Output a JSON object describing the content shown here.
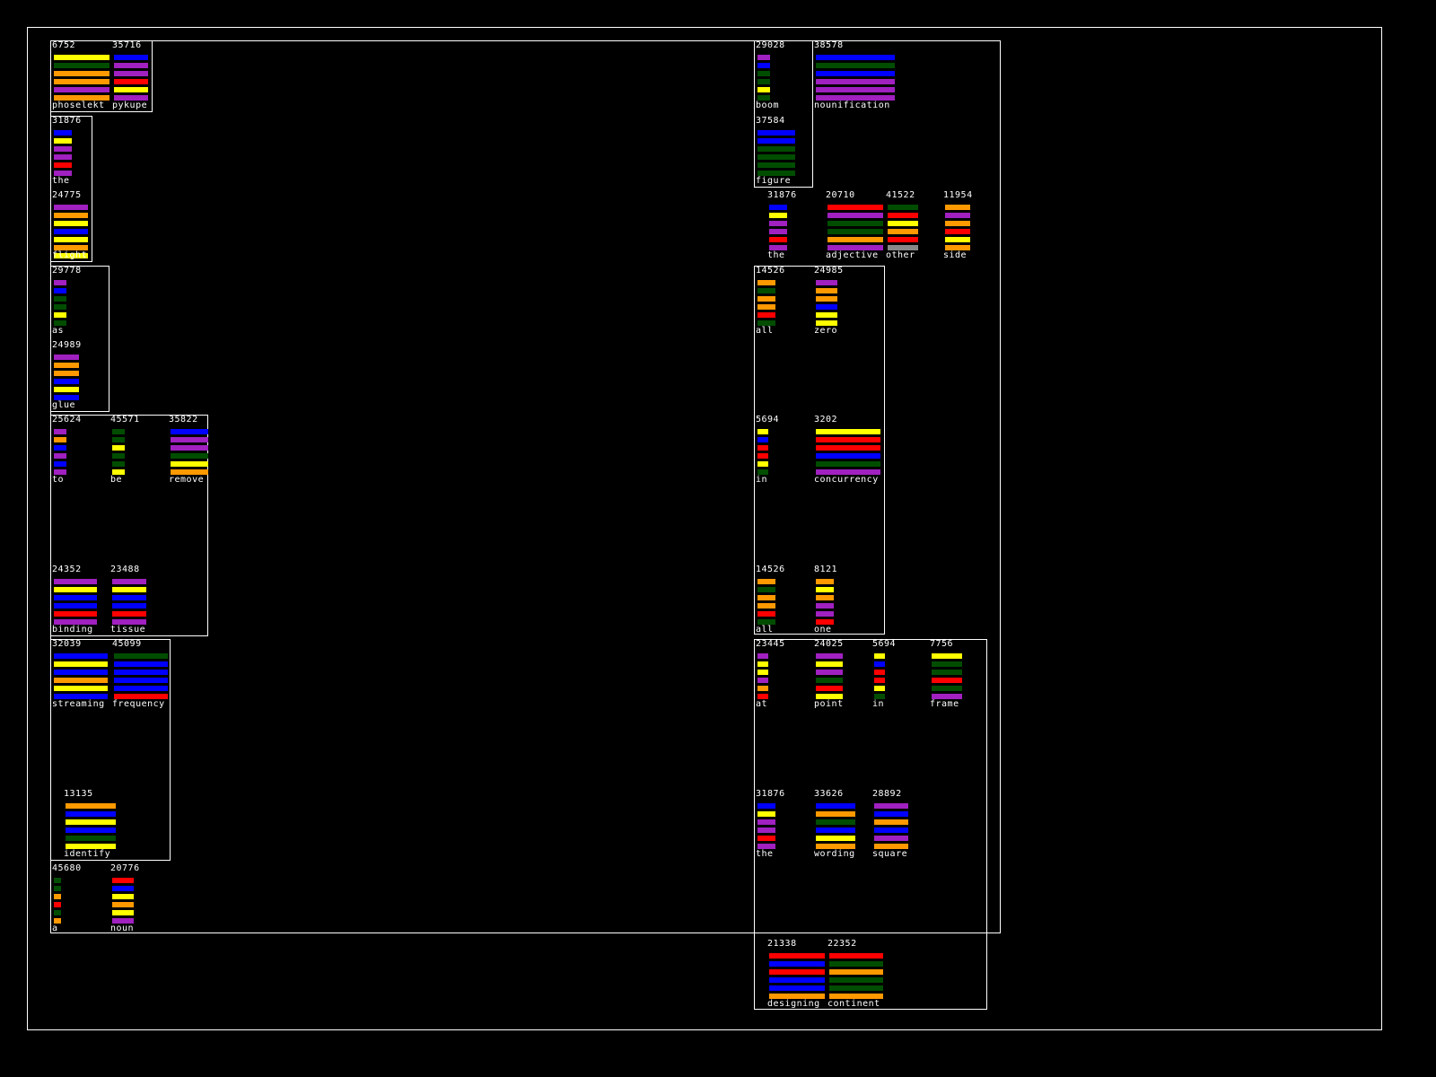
{
  "colors": {
    "o": "#ff9900",
    "y": "#ffff00",
    "b": "#0000ff",
    "p": "#a020c0",
    "r": "#ff0000",
    "g": "#004d00",
    "background": "#000000",
    "line": "#ffffff"
  },
  "words": [
    {
      "id": "w01",
      "number": "6752",
      "label": "phoselekt",
      "bars": "ygoopo"
    },
    {
      "id": "w02",
      "number": "35716",
      "label": "pykupe",
      "bars": "bppryp"
    },
    {
      "id": "w03",
      "number": "31876",
      "label": "the",
      "bars": "byppr p"
    },
    {
      "id": "w04",
      "number": "24775",
      "label": "flight",
      "bars": "poybyoy"
    },
    {
      "id": "w05",
      "number": "29778",
      "label": "as",
      "bars": "pbggyg"
    },
    {
      "id": "w06",
      "number": "24989",
      "label": "glue",
      "bars": "poobyb"
    },
    {
      "id": "w07",
      "number": "25624",
      "label": "to",
      "bars": "pobpbp"
    },
    {
      "id": "w08",
      "number": "45571",
      "label": "be",
      "bars": "ggyggy"
    },
    {
      "id": "w09",
      "number": "35822",
      "label": "remove",
      "bars": "bppgyo"
    },
    {
      "id": "w10",
      "number": "24352",
      "label": "binding",
      "bars": "pybbrp"
    },
    {
      "id": "w11",
      "number": "23488",
      "label": "tissue",
      "bars": "pybbrp"
    },
    {
      "id": "w12",
      "number": "32039",
      "label": "streaming",
      "bars": "byboyb"
    },
    {
      "id": "w13",
      "number": "45099",
      "label": "frequency",
      "bars": "gbbbbr"
    },
    {
      "id": "w14",
      "number": "13135",
      "label": "identify",
      "bars": "obybgy"
    },
    {
      "id": "w15",
      "number": "45680",
      "label": "a",
      "bars": "ggorgo"
    },
    {
      "id": "w16",
      "number": "20776",
      "label": "noun",
      "bars": "rbyoyp"
    },
    {
      "id": "w17",
      "number": "29028",
      "label": "boom",
      "bars": "pbggyg"
    },
    {
      "id": "w18",
      "number": "38578",
      "label": "nounification",
      "bars": "bgbppp"
    },
    {
      "id": "w19",
      "number": "37584",
      "label": "figure",
      "bars": "bbgggg"
    },
    {
      "id": "w20",
      "number": "31876",
      "label": "the",
      "bars": "byppr p"
    },
    {
      "id": "w21",
      "number": "20710",
      "label": "adjective",
      "bars": "rpggop"
    },
    {
      "id": "w22",
      "number": "41522",
      "label": "other",
      "bars": "gryord"
    },
    {
      "id": "w23",
      "number": "11954",
      "label": "side",
      "bars": "oporyo"
    },
    {
      "id": "w24",
      "number": "14526",
      "label": "all",
      "bars": "ogoorg"
    },
    {
      "id": "w25",
      "number": "24985",
      "label": "zero",
      "bars": "poobyy"
    },
    {
      "id": "w26",
      "number": "5694",
      "label": "in",
      "bars": "ybrryg"
    },
    {
      "id": "w27",
      "number": "3202",
      "label": "concurrency",
      "bars": "yrrbgp"
    },
    {
      "id": "w28",
      "number": "14526",
      "label": "all",
      "bars": "ogoorg"
    },
    {
      "id": "w29",
      "number": "8121",
      "label": "one",
      "bars": "oyoppr"
    },
    {
      "id": "w30",
      "number": "23445",
      "label": "at",
      "bars": "pyypor"
    },
    {
      "id": "w31",
      "number": "24025",
      "label": "point",
      "bars": "pypgry"
    },
    {
      "id": "w32",
      "number": "5694",
      "label": "in",
      "bars": "ybrryg"
    },
    {
      "id": "w33",
      "number": "7756",
      "label": "frame",
      "bars": "yggrgp"
    },
    {
      "id": "w34",
      "number": "31876",
      "label": "the",
      "bars": "byppr p"
    },
    {
      "id": "w35",
      "number": "33626",
      "label": "wording",
      "bars": "bogbyo"
    },
    {
      "id": "w36",
      "number": "28892",
      "label": "square",
      "bars": "pbobpo"
    },
    {
      "id": "w37",
      "number": "21338",
      "label": "designing",
      "bars": "rbrbbo"
    },
    {
      "id": "w38",
      "number": "22352",
      "label": "continent",
      "bars": "rgoggo"
    }
  ]
}
